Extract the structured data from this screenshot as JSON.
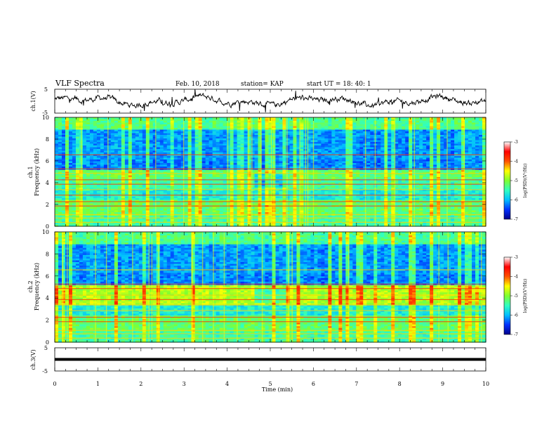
{
  "header": {
    "title": "VLF Spectra",
    "date": "Feb. 10, 2018",
    "station": "station= KAP",
    "start": "start  UT =   18: 40: 1"
  },
  "chart_data": [
    {
      "type": "line",
      "name": "ch1-voltage",
      "ylabel": "ch.1(V)",
      "ylim": [
        -5,
        5
      ],
      "yticks": [
        "5",
        "-5"
      ],
      "xlim": [
        0,
        10
      ],
      "series_shape": "noisy waveform around 0 V, amplitude about 1-3 V, with spikes"
    },
    {
      "type": "heatmap",
      "name": "ch1-spectrogram",
      "ylabel_ch": "ch.1",
      "ylabel": "Frequency  (kHz)",
      "ylim": [
        0,
        10
      ],
      "yticks": [
        "0",
        "2",
        "4",
        "6",
        "8",
        "10"
      ],
      "xlim": [
        0,
        10
      ],
      "colorbar": {
        "label": "log(PSD)(V²/Hz)",
        "range": [
          -7,
          -3
        ],
        "ticks": [
          "-3",
          "-4",
          "-5",
          "-6",
          "-7"
        ]
      }
    },
    {
      "type": "heatmap",
      "name": "ch2-spectrogram",
      "ylabel_ch": "ch.2",
      "ylabel": "Frequency  (kHz)",
      "ylim": [
        0,
        10
      ],
      "yticks": [
        "0",
        "2",
        "4",
        "6",
        "8",
        "10"
      ],
      "xlim": [
        0,
        10
      ],
      "colorbar": {
        "label": "log(PSD)(V²/Hz)",
        "range": [
          -7,
          -3
        ],
        "ticks": [
          "-3",
          "-4",
          "-5",
          "-6",
          "-7"
        ]
      }
    },
    {
      "type": "line",
      "name": "ch3-voltage",
      "ylabel": "ch.3(V)",
      "ylim": [
        -5,
        5
      ],
      "yticks": [
        "5",
        "-5"
      ],
      "xlim": [
        0,
        10
      ],
      "constant_value": 0
    }
  ],
  "xaxis": {
    "label": "Time  (min)",
    "ticks": [
      "0",
      "1",
      "2",
      "3",
      "4",
      "5",
      "6",
      "7",
      "8",
      "9",
      "10"
    ]
  },
  "colors": {
    "colormap": [
      "#00008b",
      "#0030ff",
      "#00bfff",
      "#30ffc0",
      "#7fff30",
      "#ffff00",
      "#ff5000",
      "#ff0000",
      "#ffffff"
    ]
  }
}
